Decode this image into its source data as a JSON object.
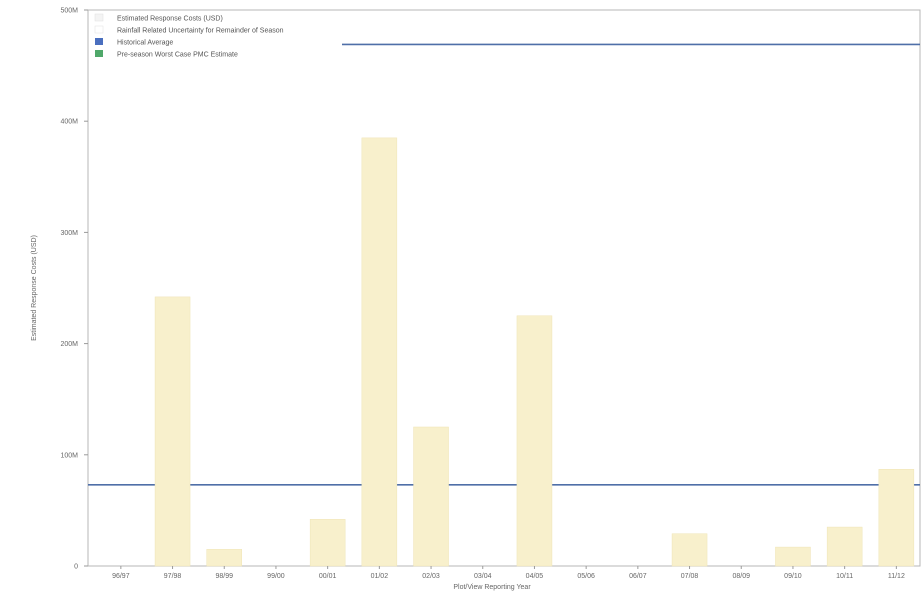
{
  "chart_data": {
    "type": "bar",
    "title": "",
    "xlabel": "Plot/View Reporting Year",
    "ylabel": "Estimated Response Costs (USD)",
    "ylim": [
      0,
      500000000
    ],
    "yticks": [
      0,
      100000000,
      200000000,
      300000000,
      400000000,
      500000000
    ],
    "ytick_labels": [
      "0",
      "100M",
      "200M",
      "300M",
      "400M",
      "500M"
    ],
    "categories": [
      "96/97",
      "97/98",
      "98/99",
      "99/00",
      "00/01",
      "01/02",
      "02/03",
      "03/04",
      "04/05",
      "05/06",
      "06/07",
      "07/08",
      "08/09",
      "09/10",
      "10/11",
      "11/12"
    ],
    "series": [
      {
        "name": "Estimated Response Costs (USD)",
        "color": "#f8f0cc",
        "values": [
          0,
          242000000,
          15000000,
          0,
          42000000,
          385000000,
          125000000,
          0,
          225000000,
          0,
          0,
          29000000,
          0,
          17000000,
          35000000,
          87000000
        ]
      }
    ],
    "reference_lines": [
      {
        "name": "Historical Average",
        "value": 73000000,
        "color": "#4f6fa8"
      },
      {
        "name": "Pre-season Worst Case PMC Estimate",
        "value": 469000000,
        "color": "#4f6fa8"
      }
    ],
    "legend": {
      "placement": "top-left",
      "entries": [
        {
          "label": "Estimated Response Costs (USD)",
          "color": "#f4f4f4"
        },
        {
          "label": "Rainfall Related Uncertainty for Remainder of Season",
          "color": "#ffffff"
        },
        {
          "label": "Historical Average",
          "color": "#4a6fbf"
        },
        {
          "label": "Pre-season Worst Case PMC Estimate",
          "color": "#4fa86a"
        }
      ]
    },
    "grid": false
  }
}
